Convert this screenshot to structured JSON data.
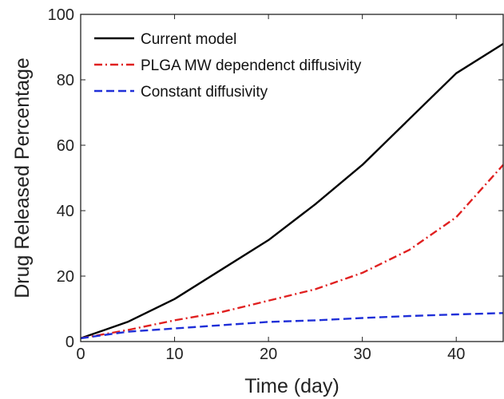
{
  "chart_data": {
    "type": "line",
    "title": "",
    "xlabel": "Time (day)",
    "ylabel": "Drug Released Percentage",
    "xlim": [
      0,
      45
    ],
    "ylim": [
      0,
      100
    ],
    "xticks": [
      0,
      10,
      20,
      30,
      40
    ],
    "yticks": [
      0,
      20,
      40,
      60,
      80,
      100
    ],
    "grid": false,
    "legend_position": "top-left",
    "series": [
      {
        "name": "Current model",
        "color": "#000000",
        "style": "solid",
        "x": [
          0,
          5,
          10,
          15,
          20,
          25,
          30,
          35,
          40,
          45
        ],
        "y": [
          1,
          6,
          13,
          22,
          31,
          42,
          54,
          68,
          82,
          91
        ]
      },
      {
        "name": "PLGA MW dependenct diffusivity",
        "color": "#e02020",
        "style": "dashdot",
        "x": [
          0,
          5,
          10,
          15,
          20,
          25,
          30,
          35,
          40,
          45
        ],
        "y": [
          1,
          3.5,
          6.5,
          9,
          12.5,
          16,
          21,
          28,
          38,
          54
        ]
      },
      {
        "name": "Constant diffusivity",
        "color": "#1f2fd8",
        "style": "dashed",
        "x": [
          0,
          5,
          10,
          15,
          20,
          25,
          30,
          35,
          40,
          45
        ],
        "y": [
          1,
          3,
          4,
          5,
          6,
          6.5,
          7.2,
          7.8,
          8.3,
          8.7
        ]
      }
    ]
  }
}
